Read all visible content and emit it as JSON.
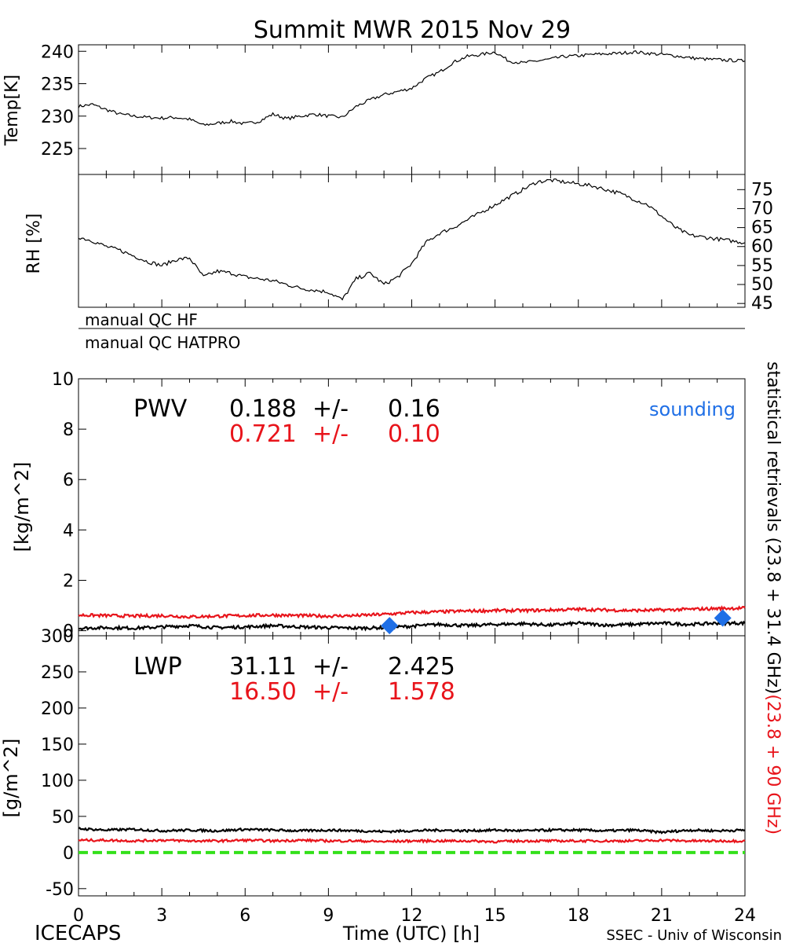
{
  "title": "Summit MWR 2015 Nov 29",
  "footer": {
    "left": "ICECAPS",
    "center": "Time (UTC) [h]",
    "right": "SSEC - Univ of Wisconsin"
  },
  "qc": {
    "hf": "manual QC HF",
    "hatpro": "manual QC HATPRO"
  },
  "side_label": {
    "black": "statistical retrievals (23.8 + 31.4 GHz)",
    "red": "(23.8 + 90 GHz)"
  },
  "colors": {
    "black": "#000000",
    "red": "#e8141b",
    "blue": "#1f6fe6",
    "green": "#33e01a"
  },
  "chart_data": [
    {
      "id": "temp",
      "type": "line",
      "ylabel": "Temp[K]",
      "xlim": [
        0,
        24
      ],
      "ylim": [
        221,
        241
      ],
      "yticks": [
        225,
        230,
        235,
        240
      ],
      "series": [
        {
          "x": [
            0,
            0.5,
            1,
            1.5,
            2,
            2.5,
            3,
            3.5,
            4,
            4.5,
            5,
            5.5,
            6,
            6.5,
            7,
            7.5,
            8,
            8.5,
            9,
            9.5,
            10,
            10.5,
            11,
            11.5,
            12,
            12.5,
            13,
            13.5,
            14,
            14.5,
            15,
            15.5,
            16,
            16.5,
            17,
            17.5,
            18,
            18.5,
            19,
            19.5,
            20,
            20.5,
            21,
            21.5,
            22,
            22.5,
            23,
            23.5,
            24
          ],
          "y": [
            231.5,
            231.8,
            231,
            230.3,
            230,
            229.8,
            229.7,
            229.8,
            229.5,
            228.6,
            228.9,
            229.2,
            228.8,
            229.2,
            230.3,
            229.6,
            230,
            230.3,
            230,
            229.8,
            231.5,
            232.5,
            233.3,
            233.8,
            234.3,
            235.8,
            236.8,
            238.3,
            239.2,
            239.5,
            239.9,
            238.5,
            238.2,
            238.5,
            238.8,
            239.2,
            239.3,
            239.5,
            239.6,
            239.7,
            239.9,
            239.7,
            239.5,
            239.3,
            239.0,
            238.8,
            238.7,
            238.6,
            238.5
          ]
        }
      ]
    },
    {
      "id": "rh",
      "type": "line",
      "ylabel": "RH [%]",
      "xlim": [
        0,
        24
      ],
      "ylim": [
        44,
        79
      ],
      "yticks": [
        45,
        50,
        55,
        60,
        65,
        70,
        75
      ],
      "series": [
        {
          "x": [
            0,
            0.5,
            1,
            1.5,
            2,
            2.5,
            3,
            3.5,
            4,
            4.5,
            5,
            5.5,
            6,
            6.5,
            7,
            7.5,
            8,
            8.5,
            9,
            9.5,
            10,
            10.5,
            11,
            11.5,
            12,
            12.5,
            13,
            13.5,
            14,
            14.5,
            15,
            15.5,
            16,
            16.5,
            17,
            17.5,
            18,
            18.5,
            19,
            19.5,
            20,
            20.5,
            21,
            21.5,
            22,
            22.5,
            23,
            23.5,
            24
          ],
          "y": [
            62.5,
            61.5,
            60,
            59,
            57.5,
            56,
            55,
            56.5,
            57,
            52,
            53.5,
            53,
            52,
            51.5,
            51,
            50,
            49,
            48.5,
            48,
            46,
            51.5,
            53,
            50,
            52,
            55.5,
            61,
            63.5,
            65,
            67,
            69,
            71,
            73,
            75,
            77,
            77.5,
            77,
            76.5,
            76,
            75,
            74,
            72.5,
            71,
            68,
            65,
            63,
            62.5,
            62,
            61.5,
            61
          ]
        }
      ]
    },
    {
      "id": "pwv",
      "type": "line",
      "label": "PWV",
      "ylabel": "[kg/m^2]",
      "xlim": [
        0,
        24
      ],
      "ylim": [
        -0.2,
        10
      ],
      "yticks": [
        0,
        2,
        4,
        6,
        8,
        10
      ],
      "xticks": [
        0,
        3,
        6,
        9,
        12,
        15,
        18,
        21,
        24
      ],
      "stats": [
        {
          "value": "0.188",
          "pm": "+/-",
          "err": "0.16",
          "color": "black"
        },
        {
          "value": "0.721",
          "pm": "+/-",
          "err": "0.10",
          "color": "red"
        }
      ],
      "series": [
        {
          "color": "black",
          "x": [
            0,
            1,
            2,
            3,
            4,
            5,
            6,
            7,
            8,
            9,
            10,
            11,
            12,
            13,
            14,
            15,
            16,
            17,
            18,
            19,
            20,
            21,
            22,
            23,
            24
          ],
          "y": [
            0.1,
            0.12,
            0.1,
            0.15,
            0.2,
            0.12,
            0.15,
            0.2,
            0.15,
            0.12,
            0.1,
            0.12,
            0.18,
            0.25,
            0.2,
            0.25,
            0.28,
            0.22,
            0.3,
            0.22,
            0.25,
            0.3,
            0.25,
            0.3,
            0.3
          ]
        },
        {
          "color": "red",
          "x": [
            0,
            1,
            2,
            3,
            4,
            5,
            6,
            7,
            8,
            9,
            10,
            11,
            12,
            13,
            14,
            15,
            16,
            17,
            18,
            19,
            20,
            21,
            22,
            23,
            24
          ],
          "y": [
            0.62,
            0.6,
            0.58,
            0.6,
            0.55,
            0.58,
            0.6,
            0.62,
            0.6,
            0.58,
            0.6,
            0.65,
            0.72,
            0.75,
            0.78,
            0.8,
            0.8,
            0.82,
            0.85,
            0.82,
            0.8,
            0.82,
            0.85,
            0.88,
            0.9
          ]
        }
      ],
      "sounding": {
        "label": "sounding",
        "x": [
          11.2,
          23.2
        ],
        "y": [
          0.2,
          0.5
        ]
      }
    },
    {
      "id": "lwp",
      "type": "line",
      "label": "LWP",
      "ylabel": "[g/m^2]",
      "xlabel": "Time (UTC) [h]",
      "xlim": [
        0,
        24
      ],
      "ylim": [
        -60,
        300
      ],
      "yticks": [
        -50,
        0,
        50,
        100,
        150,
        200,
        250,
        300
      ],
      "xticks": [
        0,
        3,
        6,
        9,
        12,
        15,
        18,
        21,
        24
      ],
      "stats": [
        {
          "value": "31.11",
          "pm": "+/-",
          "err": "2.425",
          "color": "black"
        },
        {
          "value": "16.50",
          "pm": "+/-",
          "err": "1.578",
          "color": "red"
        }
      ],
      "series": [
        {
          "color": "black",
          "x": [
            0,
            1,
            2,
            3,
            4,
            5,
            6,
            7,
            8,
            9,
            10,
            11,
            12,
            13,
            14,
            15,
            16,
            17,
            18,
            19,
            20,
            21,
            22,
            23,
            24
          ],
          "y": [
            33,
            31,
            32,
            30,
            31,
            30,
            32,
            31,
            30,
            31,
            30,
            29,
            30,
            31,
            30,
            31,
            30,
            31,
            31,
            30,
            31,
            28,
            31,
            30,
            31
          ]
        },
        {
          "color": "red",
          "x": [
            0,
            1,
            2,
            3,
            4,
            5,
            6,
            7,
            8,
            9,
            10,
            11,
            12,
            13,
            14,
            15,
            16,
            17,
            18,
            19,
            20,
            21,
            22,
            23,
            24
          ],
          "y": [
            17,
            17,
            16,
            17,
            16,
            16,
            17,
            16,
            17,
            16,
            16,
            15,
            16,
            16,
            16,
            15,
            16,
            16,
            16,
            16,
            16,
            17,
            16,
            16,
            16
          ]
        },
        {
          "color": "green",
          "dashed": true,
          "x": [
            0,
            24
          ],
          "y": [
            0,
            0
          ]
        }
      ]
    }
  ]
}
